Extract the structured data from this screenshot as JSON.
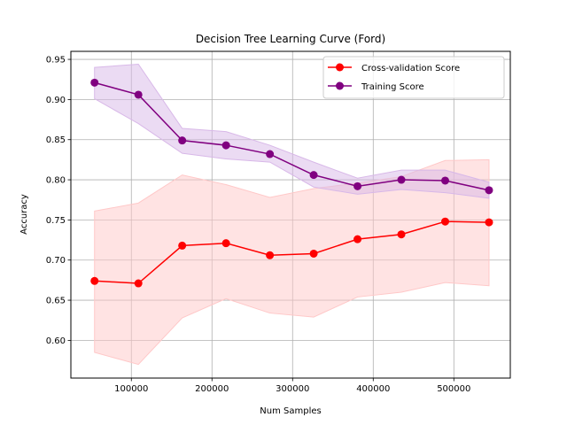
{
  "chart_data": {
    "type": "line",
    "title": "Decision Tree Learning Curve (Ford)",
    "xlabel": "Num Samples",
    "ylabel": "Accuracy",
    "x": [
      54360,
      108720,
      163080,
      217440,
      271800,
      326160,
      380520,
      434880,
      489240,
      543600
    ],
    "xlim": [
      25000,
      570000
    ],
    "ylim": [
      0.553,
      0.96
    ],
    "xticks": [
      100000,
      200000,
      300000,
      400000,
      500000
    ],
    "xtick_labels": [
      "100000",
      "200000",
      "300000",
      "400000",
      "500000"
    ],
    "yticks": [
      0.6,
      0.65,
      0.7,
      0.75,
      0.8,
      0.85,
      0.9,
      0.95
    ],
    "ytick_labels": [
      "0.60",
      "0.65",
      "0.70",
      "0.75",
      "0.80",
      "0.85",
      "0.90",
      "0.95"
    ],
    "grid": true,
    "legend_position": "top-right",
    "series": [
      {
        "name": "Cross-validation Score",
        "color": "#ff0000",
        "band_color": "#ffc8c8",
        "values": [
          0.674,
          0.671,
          0.718,
          0.721,
          0.706,
          0.708,
          0.726,
          0.732,
          0.748,
          0.747
        ],
        "band_lower": [
          0.585,
          0.57,
          0.628,
          0.652,
          0.634,
          0.629,
          0.654,
          0.66,
          0.672,
          0.668
        ],
        "band_upper": [
          0.761,
          0.771,
          0.806,
          0.794,
          0.778,
          0.789,
          0.796,
          0.804,
          0.824,
          0.825
        ]
      },
      {
        "name": "Training Score",
        "color": "#800080",
        "band_color": "#d8b8e8",
        "values": [
          0.921,
          0.906,
          0.849,
          0.843,
          0.832,
          0.806,
          0.792,
          0.8,
          0.799,
          0.787
        ],
        "band_lower": [
          0.901,
          0.87,
          0.833,
          0.826,
          0.822,
          0.791,
          0.782,
          0.788,
          0.784,
          0.777
        ],
        "band_upper": [
          0.94,
          0.944,
          0.864,
          0.86,
          0.843,
          0.822,
          0.802,
          0.812,
          0.812,
          0.797
        ]
      }
    ]
  }
}
